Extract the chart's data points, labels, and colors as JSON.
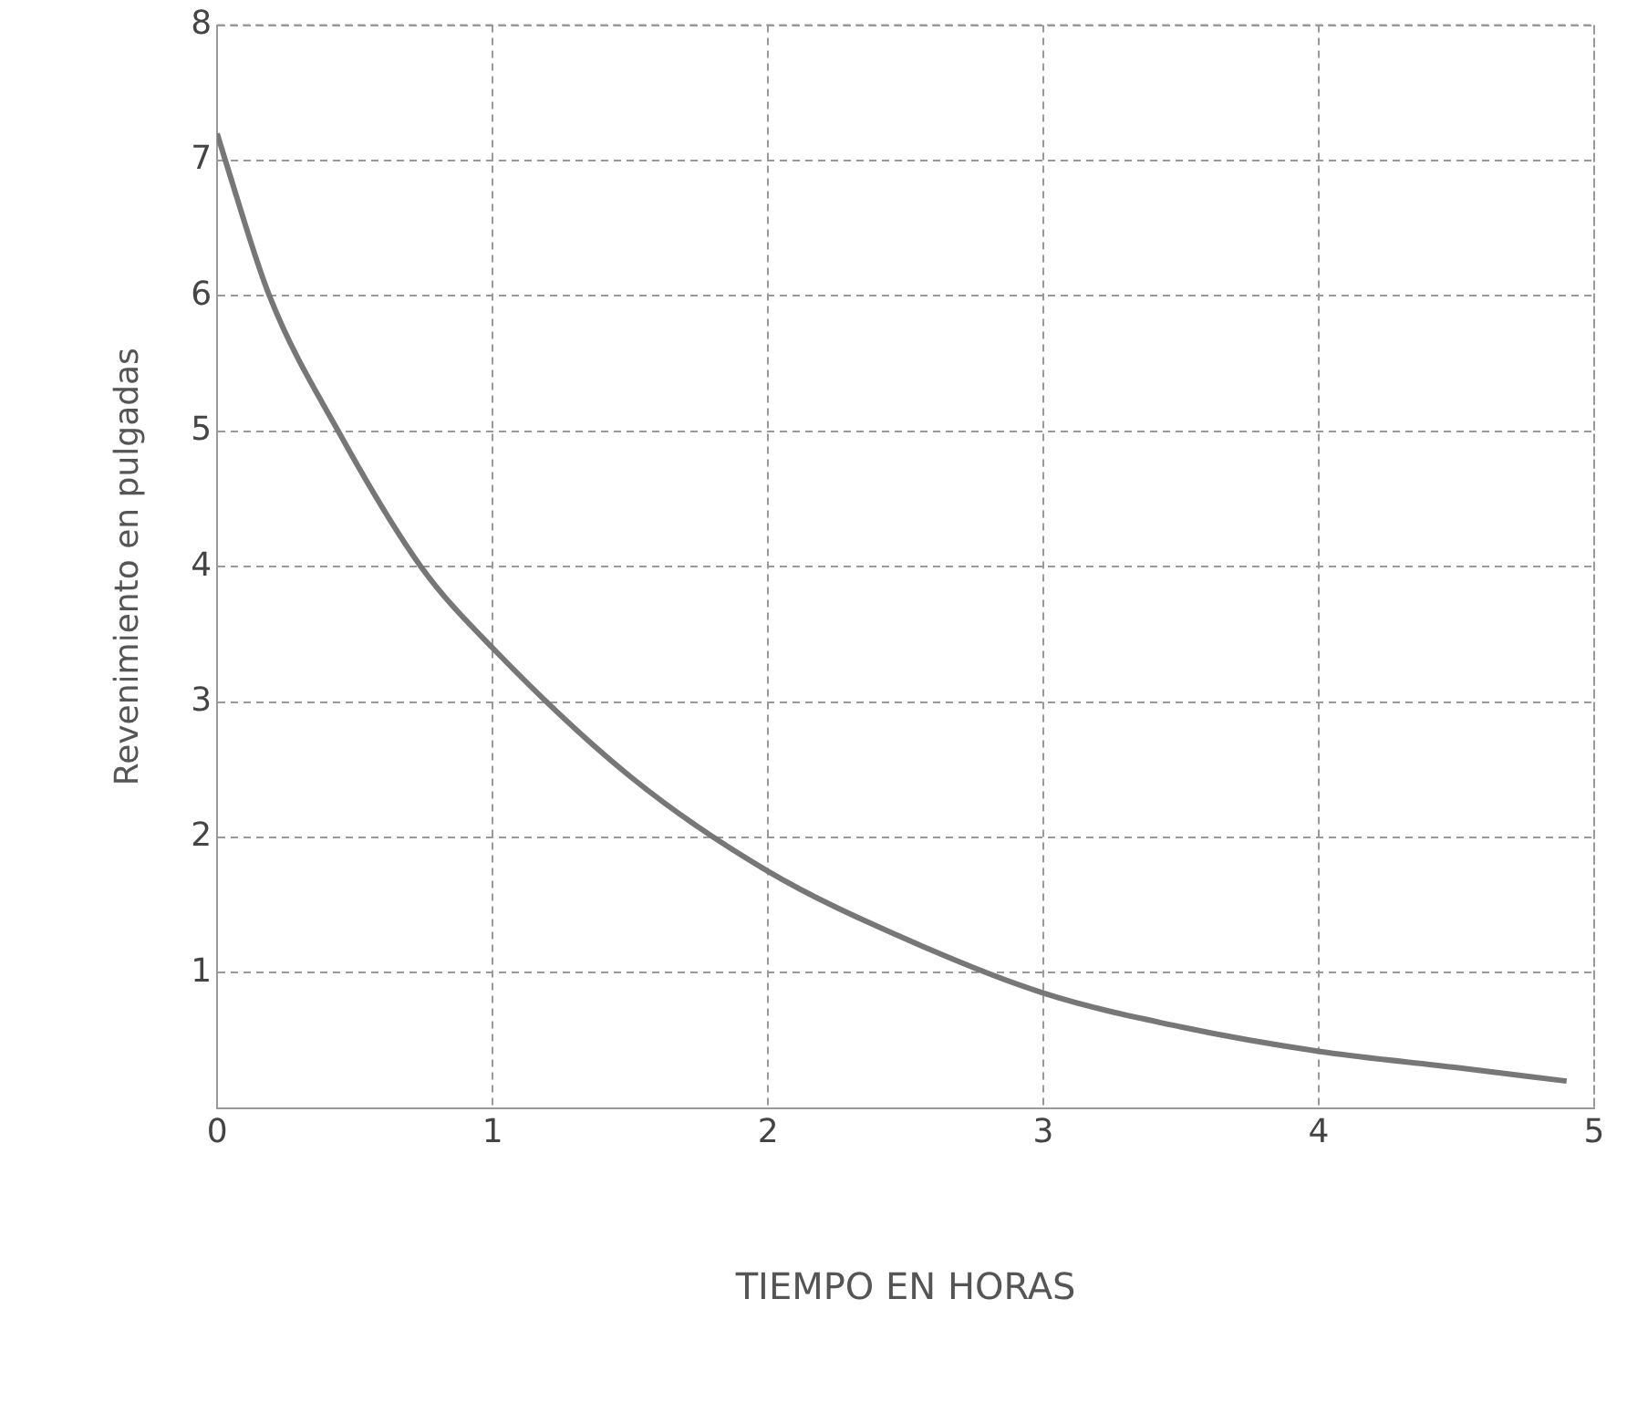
{
  "chart_data": {
    "type": "line",
    "xlabel": "TIEMPO EN HORAS",
    "ylabel": "Revenimiento en pulgadas",
    "x": [
      0,
      0.03,
      0.19,
      0.44,
      0.74,
      1,
      1.5,
      2,
      2.5,
      3,
      3.5,
      4,
      4.5,
      4.9
    ],
    "series": [
      {
        "color": "#777777",
        "values": [
          7.2,
          7,
          6,
          5,
          4,
          3.4,
          2.45,
          1.75,
          1.25,
          0.85,
          0.6,
          0.42,
          0.3,
          0.2
        ]
      }
    ],
    "xlim": [
      0,
      5
    ],
    "xticks": [
      0,
      1,
      2,
      3,
      4,
      5
    ],
    "ylim": [
      0,
      8
    ],
    "yticks": [
      1,
      2,
      3,
      4,
      5,
      6,
      7,
      8
    ],
    "grid": true,
    "legend": false,
    "marker": "none",
    "line_style": "solid"
  }
}
